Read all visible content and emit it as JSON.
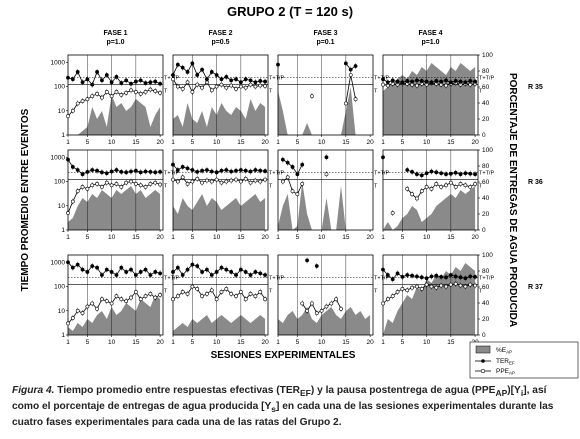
{
  "figure": {
    "title": "GRUPO 2 (T = 120 s)",
    "y_left_label": "TIEMPO PROMEDIO ENTRE EVENTOS",
    "y_right_label": "PORCENTAJE DE ENTREGAS DE AGUA PRODUCIDA",
    "x_label": "SESIONES EXPERIMENTALES",
    "phases": [
      {
        "name": "FASE 1",
        "p": "p=1.0"
      },
      {
        "name": "FASE 2",
        "p": "p=0.5"
      },
      {
        "name": "FASE 3",
        "p": "p=0.1"
      },
      {
        "name": "FASE 4",
        "p": "p=1.0"
      }
    ],
    "rats": [
      "R 35",
      "R 36",
      "R 37"
    ],
    "x_ticks": [
      "1",
      "5",
      "10",
      "15",
      "20"
    ],
    "y_left_ticks": [
      "1",
      "10",
      "100",
      "1000"
    ],
    "y_right_ticks": [
      "0",
      "20",
      "40",
      "60",
      "80",
      "100"
    ],
    "ref_labels": {
      "ttp": "T+T/P",
      "t": "T"
    },
    "legend": {
      "area": "%E",
      "area_sub": "AP",
      "ter": "TER",
      "ter_sub": "EF",
      "ppe": "PPE",
      "ppe_sub": "AP"
    }
  },
  "caption": {
    "lead": "Figura 4.",
    "text_a": " Tiempo promedio entre respuestas efectivas (TER",
    "sub_a": "EF",
    "text_b": ") y la pausa postentrega de agua (PPE",
    "sub_b": "AP",
    "text_c": ")[Y",
    "sub_c": "i",
    "text_d": "], así como el porcentaje de entregas de agua producida [Y",
    "sub_d": "s",
    "text_e": "] en cada una de las sesiones experimentales durante las cuatro fases experimentales para cada una de las ratas del Grupo 2."
  },
  "chart_data": {
    "type": "line",
    "x": [
      1,
      2,
      3,
      4,
      5,
      6,
      7,
      8,
      9,
      10,
      11,
      12,
      13,
      14,
      15,
      16,
      17,
      18,
      19,
      20
    ],
    "xlabel": "SESIONES EXPERIMENTALES",
    "ylabel": "TIEMPO PROMEDIO ENTRE EVENTOS",
    "y2label": "PORCENTAJE DE ENTREGAS DE AGUA PRODUCIDA",
    "yscale": "log",
    "ylim": [
      1,
      2000
    ],
    "y2lim": [
      0,
      100
    ],
    "series_names": [
      "%EAP",
      "TEREF",
      "PPEAP"
    ],
    "panels": [
      {
        "rat": "R 35",
        "phase": "FASE 1",
        "area": [
          0,
          0,
          0,
          5,
          10,
          35,
          20,
          30,
          10,
          50,
          35,
          40,
          30,
          35,
          45,
          40,
          35,
          10,
          25,
          35
        ],
        "ter": [
          230,
          200,
          400,
          150,
          200,
          120,
          400,
          180,
          300,
          150,
          250,
          140,
          180,
          130,
          160,
          180,
          140,
          150,
          160,
          130
        ],
        "ppe": [
          6,
          10,
          20,
          25,
          30,
          40,
          50,
          35,
          60,
          40,
          60,
          45,
          55,
          70,
          60,
          50,
          60,
          75,
          65,
          55
        ]
      },
      {
        "rat": "R 35",
        "phase": "FASE 2",
        "area": [
          20,
          25,
          10,
          40,
          20,
          15,
          30,
          10,
          35,
          25,
          40,
          30,
          25,
          35,
          30,
          20,
          45,
          30,
          40,
          35
        ],
        "ter": [
          300,
          800,
          600,
          400,
          900,
          300,
          500,
          200,
          400,
          300,
          200,
          250,
          180,
          200,
          150,
          200,
          180,
          150,
          170,
          160
        ],
        "ppe": [
          200,
          100,
          80,
          150,
          60,
          120,
          90,
          150,
          70,
          100,
          120,
          90,
          110,
          80,
          100,
          90,
          120,
          100,
          110,
          105
        ]
      },
      {
        "rat": "R 35",
        "phase": "FASE 3",
        "area": [
          55,
          30,
          0,
          0,
          0,
          0,
          15,
          0,
          0,
          0,
          0,
          0,
          0,
          0,
          30,
          60,
          0,
          0,
          0,
          0
        ],
        "ter": [
          800,
          null,
          null,
          null,
          null,
          null,
          null,
          null,
          null,
          null,
          null,
          null,
          null,
          null,
          900,
          500,
          700,
          null,
          null,
          null
        ],
        "ppe": [
          null,
          null,
          null,
          null,
          null,
          null,
          null,
          40,
          null,
          null,
          null,
          null,
          null,
          null,
          20,
          300,
          30,
          null,
          null,
          null
        ]
      },
      {
        "rat": "R 35",
        "phase": "FASE 4",
        "area": [
          55,
          60,
          65,
          70,
          75,
          70,
          80,
          75,
          85,
          80,
          90,
          85,
          80,
          75,
          85,
          80,
          90,
          85,
          80,
          85
        ],
        "ter": [
          200,
          150,
          180,
          160,
          150,
          170,
          160,
          180,
          170,
          160,
          150,
          170,
          160,
          180,
          150,
          170,
          160,
          150,
          170,
          160
        ],
        "ppe": [
          120,
          110,
          130,
          120,
          140,
          130,
          120,
          110,
          130,
          120,
          140,
          130,
          120,
          110,
          130,
          140,
          120,
          130,
          120,
          130
        ]
      },
      {
        "rat": "R 36",
        "phase": "FASE 1",
        "area": [
          10,
          15,
          30,
          40,
          35,
          45,
          40,
          50,
          45,
          40,
          50,
          45,
          50,
          55,
          45,
          50,
          40,
          45,
          50,
          45
        ],
        "ter": [
          800,
          400,
          300,
          200,
          250,
          300,
          280,
          240,
          220,
          260,
          300,
          250,
          240,
          260,
          280,
          240,
          260,
          250,
          240,
          250
        ],
        "ppe": [
          5,
          15,
          40,
          60,
          50,
          70,
          80,
          60,
          90,
          70,
          80,
          60,
          90,
          100,
          80,
          70,
          60,
          80,
          90,
          75
        ]
      },
      {
        "rat": "R 36",
        "phase": "FASE 2",
        "area": [
          30,
          20,
          40,
          30,
          25,
          35,
          45,
          30,
          40,
          35,
          25,
          30,
          35,
          40,
          30,
          35,
          40,
          45,
          35,
          40
        ],
        "ter": [
          500,
          300,
          400,
          350,
          300,
          250,
          280,
          300,
          260,
          240,
          280,
          300,
          260,
          280,
          300,
          280,
          260,
          300,
          280,
          270
        ],
        "ppe": [
          120,
          100,
          150,
          80,
          100,
          130,
          90,
          110,
          100,
          120,
          90,
          100,
          110,
          120,
          100,
          130,
          90,
          110,
          100,
          120
        ]
      },
      {
        "rat": "R 36",
        "phase": "FASE 3",
        "area": [
          5,
          30,
          45,
          0,
          5,
          60,
          20,
          0,
          0,
          0,
          40,
          0,
          0,
          55,
          0,
          0,
          0,
          0,
          0,
          0
        ],
        "ter": [
          null,
          800,
          600,
          400,
          200,
          500,
          null,
          null,
          null,
          null,
          1000,
          null,
          null,
          null,
          null,
          null,
          null,
          null,
          null,
          null
        ],
        "ppe": [
          null,
          100,
          150,
          40,
          30,
          80,
          null,
          null,
          null,
          null,
          200,
          null,
          null,
          null,
          null,
          null,
          null,
          null,
          null,
          null
        ]
      },
      {
        "rat": "R 36",
        "phase": "FASE 4",
        "area": [
          0,
          10,
          0,
          5,
          15,
          20,
          30,
          25,
          10,
          15,
          20,
          30,
          35,
          40,
          45,
          40,
          50,
          45,
          50,
          55
        ],
        "ter": [
          1000,
          null,
          null,
          null,
          null,
          300,
          250,
          200,
          180,
          220,
          260,
          240,
          220,
          200,
          210,
          230,
          200,
          220,
          210,
          200
        ],
        "ppe": [
          null,
          null,
          5,
          null,
          null,
          50,
          30,
          20,
          40,
          60,
          50,
          80,
          60,
          70,
          90,
          60,
          80,
          70,
          60,
          80
        ]
      },
      {
        "rat": "R 37",
        "phase": "FASE 1",
        "area": [
          10,
          5,
          15,
          10,
          20,
          15,
          25,
          30,
          20,
          35,
          25,
          30,
          40,
          35,
          30,
          45,
          40,
          35,
          50,
          45
        ],
        "ter": [
          1000,
          600,
          800,
          500,
          400,
          700,
          600,
          300,
          500,
          400,
          300,
          600,
          400,
          500,
          300,
          400,
          500,
          300,
          400,
          350
        ],
        "ppe": [
          3,
          5,
          10,
          8,
          15,
          20,
          12,
          30,
          25,
          20,
          40,
          30,
          25,
          35,
          60,
          30,
          40,
          50,
          35,
          45
        ]
      },
      {
        "rat": "R 37",
        "phase": "FASE 2",
        "area": [
          5,
          10,
          15,
          10,
          20,
          15,
          20,
          25,
          15,
          20,
          25,
          20,
          15,
          20,
          25,
          20,
          15,
          20,
          25,
          20
        ],
        "ter": [
          400,
          600,
          300,
          500,
          800,
          700,
          400,
          500,
          300,
          400,
          600,
          500,
          400,
          300,
          500,
          400,
          300,
          400,
          350,
          300
        ],
        "ppe": [
          30,
          40,
          60,
          50,
          100,
          80,
          40,
          50,
          70,
          30,
          60,
          80,
          50,
          40,
          60,
          30,
          50,
          40,
          60,
          30
        ]
      },
      {
        "rat": "R 37",
        "phase": "FASE 3",
        "area": [
          20,
          15,
          25,
          30,
          20,
          25,
          35,
          20,
          15,
          25,
          30,
          35,
          25,
          20,
          30,
          35,
          25,
          30,
          20,
          25
        ],
        "ter": [
          null,
          null,
          null,
          null,
          null,
          null,
          1200,
          null,
          700,
          null,
          null,
          null,
          null,
          null,
          null,
          null,
          null,
          null,
          null,
          null
        ],
        "ppe": [
          null,
          null,
          null,
          null,
          null,
          20,
          10,
          20,
          8,
          10,
          15,
          20,
          30,
          12,
          null,
          null,
          null,
          null,
          null,
          null
        ]
      },
      {
        "rat": "R 37",
        "phase": "FASE 4",
        "area": [
          0,
          20,
          15,
          30,
          40,
          50,
          45,
          60,
          55,
          70,
          65,
          75,
          70,
          80,
          75,
          85,
          80,
          90,
          85,
          80
        ],
        "ter": [
          500,
          300,
          200,
          350,
          250,
          300,
          280,
          260,
          240,
          220,
          260,
          280,
          250,
          240,
          300,
          260,
          240,
          220,
          260,
          250
        ],
        "ppe": [
          20,
          30,
          40,
          60,
          80,
          70,
          90,
          100,
          80,
          120,
          100,
          90,
          110,
          100,
          120,
          130,
          110,
          100,
          120,
          110
        ]
      }
    ]
  }
}
